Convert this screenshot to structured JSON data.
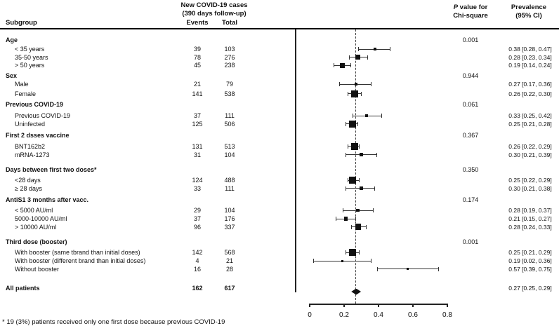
{
  "header": {
    "subgroup": "Subgroup",
    "cases_line1": "New COVID-19 cases",
    "cases_line2": "(390 days follow-up)",
    "events": "Events",
    "total": "Total",
    "pvalue_italic": "P",
    "pvalue_rest": " value for",
    "pvalue_line2": "Chi-square",
    "prevalence_line1": "Prevalence",
    "prevalence_line2": "(95% CI)"
  },
  "footnote": "* 19 (3%) patients received only one first dose because previous COVID-19",
  "colors": {
    "text": "#111111",
    "line": "#222222",
    "marker": "#111111",
    "background": "#ffffff"
  },
  "chart_data": {
    "type": "forest",
    "xlim": [
      0,
      0.8
    ],
    "axis_ticks": [
      {
        "value": 0,
        "label": "0"
      },
      {
        "value": 0.2,
        "label": "0.2"
      },
      {
        "value": 0.4,
        "label": "0.4"
      },
      {
        "value": 0.6,
        "label": "0.6"
      },
      {
        "value": 0.8,
        "label": "0.8"
      }
    ],
    "reference_line": 0.27,
    "rows": [
      {
        "kind": "group",
        "label": "Age",
        "p": "0.001"
      },
      {
        "kind": "item",
        "label": "< 35 years",
        "events": "39",
        "total": 103,
        "est": 0.38,
        "lo": 0.28,
        "hi": 0.47,
        "ci": "0.38 [0.28, 0.47]"
      },
      {
        "kind": "item",
        "label": "35-50 years",
        "events": "78",
        "total": 276,
        "est": 0.28,
        "lo": 0.23,
        "hi": 0.34,
        "ci": "0.28 [0.23, 0.34]"
      },
      {
        "kind": "item",
        "label": "> 50 years",
        "events": "45",
        "total": 238,
        "est": 0.19,
        "lo": 0.14,
        "hi": 0.24,
        "ci": "0.19 [0.14, 0.24]"
      },
      {
        "kind": "group",
        "label": "Sex",
        "p": "0.944"
      },
      {
        "kind": "item",
        "label": "Male",
        "events": "21",
        "total": 79,
        "est": 0.27,
        "lo": 0.17,
        "hi": 0.36,
        "ci": "0.27 [0.17, 0.36]"
      },
      {
        "kind": "item",
        "label": "Female",
        "events": "141",
        "total": 538,
        "est": 0.26,
        "lo": 0.22,
        "hi": 0.3,
        "ci": "0.26 [0.22, 0.30]"
      },
      {
        "kind": "group",
        "label": "Previous COVID-19",
        "p": "0.061"
      },
      {
        "kind": "item",
        "label": "Previous COVID-19",
        "events": "37",
        "total": 111,
        "est": 0.33,
        "lo": 0.25,
        "hi": 0.42,
        "ci": "0.33 [0.25, 0.42]"
      },
      {
        "kind": "item",
        "label": "Uninfected",
        "events": "125",
        "total": 506,
        "est": 0.25,
        "lo": 0.21,
        "hi": 0.28,
        "ci": "0.25 [0.21, 0.28]"
      },
      {
        "kind": "group",
        "label": "First 2 dsses vaccine",
        "p": "0.367"
      },
      {
        "kind": "item",
        "label": "BNT162b2",
        "events": "131",
        "total": 513,
        "est": 0.26,
        "lo": 0.22,
        "hi": 0.29,
        "ci": "0.26 [0.22, 0.29]"
      },
      {
        "kind": "item",
        "label": "mRNA-1273",
        "events": "31",
        "total": 104,
        "est": 0.3,
        "lo": 0.21,
        "hi": 0.39,
        "ci": "0.30 [0.21, 0.39]"
      },
      {
        "kind": "group",
        "label": "Days between first two doses*",
        "p": "0.350"
      },
      {
        "kind": "item",
        "label": "<28 days",
        "events": "124",
        "total": 488,
        "est": 0.25,
        "lo": 0.22,
        "hi": 0.29,
        "ci": "0.25 [0.22, 0.29]"
      },
      {
        "kind": "item",
        "label": "≥ 28 days",
        "events": "33",
        "total": 111,
        "est": 0.3,
        "lo": 0.21,
        "hi": 0.38,
        "ci": "0.30 [0.21, 0.38]"
      },
      {
        "kind": "group",
        "label": "AntiS1 3 months after vacc.",
        "p": "0.174"
      },
      {
        "kind": "item",
        "label": "< 5000 AU/ml",
        "events": "29",
        "total": 104,
        "est": 0.28,
        "lo": 0.19,
        "hi": 0.37,
        "ci": "0.28 [0.19, 0.37]"
      },
      {
        "kind": "item",
        "label": "5000-10000 AU/ml",
        "events": "37",
        "total": 176,
        "est": 0.21,
        "lo": 0.15,
        "hi": 0.27,
        "ci": "0.21 [0.15, 0.27]"
      },
      {
        "kind": "item",
        "label": "> 10000 AU/ml",
        "events": "96",
        "total": 337,
        "est": 0.28,
        "lo": 0.24,
        "hi": 0.33,
        "ci": "0.28 [0.24, 0.33]"
      },
      {
        "kind": "group",
        "label": "Third dose (booster)",
        "p": "0.001"
      },
      {
        "kind": "item",
        "label": "With booster (same tbrand than initial doses)",
        "events": "142",
        "total": 568,
        "est": 0.25,
        "lo": 0.21,
        "hi": 0.29,
        "ci": "0.25 [0.21, 0.29]"
      },
      {
        "kind": "item",
        "label": "With booster (different brand than initial doses)",
        "events": "4",
        "total": 21,
        "est": 0.19,
        "lo": 0.02,
        "hi": 0.36,
        "ci": "0.19 [0.02, 0.36]"
      },
      {
        "kind": "item",
        "label": "Without booster",
        "events": "16",
        "total": 28,
        "est": 0.57,
        "lo": 0.39,
        "hi": 0.75,
        "ci": "0.57 [0.39, 0.75]"
      },
      {
        "kind": "all",
        "label": "All patients",
        "events": "162",
        "total": 617,
        "est": 0.27,
        "lo": 0.25,
        "hi": 0.29,
        "ci": "0.27 [0.25, 0.29]"
      }
    ]
  }
}
